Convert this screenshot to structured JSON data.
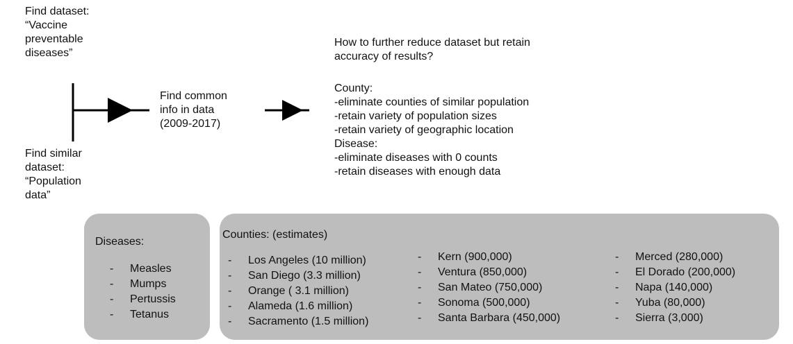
{
  "find_dataset": [
    "Find dataset:",
    "“Vaccine",
    "preventable",
    "diseases”"
  ],
  "find_similar": [
    "Find similar",
    "dataset:",
    "“Population",
    "data”"
  ],
  "find_common": [
    "Find common",
    "info in data",
    "(2009-2017)"
  ],
  "reduce": {
    "question": [
      "How to further reduce dataset but retain",
      "accuracy of results?"
    ],
    "criteria": [
      "County:",
      "-eliminate counties of similar population",
      "-retain variety of population sizes",
      "-retain variety of geographic location",
      "Disease:",
      "-eliminate diseases with 0 counts",
      "-retain diseases with enough data"
    ]
  },
  "diseases_panel": {
    "title": "Diseases:",
    "bullet": "-",
    "items": [
      "Measles",
      "Mumps",
      "Pertussis",
      "Tetanus"
    ]
  },
  "counties_panel": {
    "title": "Counties: (estimates)",
    "bullet": "-",
    "columns": [
      [
        "Los Angeles (10 million)",
        "San Diego (3.3 million)",
        "Orange ( 3.1 million)",
        "Alameda (1.6 million)",
        "Sacramento (1.5 million)"
      ],
      [
        "Kern (900,000)",
        "Ventura (850,000)",
        "San Mateo (750,000)",
        "Sonoma (500,000)",
        "Santa Barbara (450,000)"
      ],
      [
        "Merced (280,000)",
        "El Dorado (200,000)",
        "Napa (140,000)",
        "Yuba (80,000)",
        "Sierra (3,000)"
      ]
    ]
  },
  "colors": {
    "panel": "#bdbdbd",
    "line": "#000000",
    "text": "#111111"
  }
}
